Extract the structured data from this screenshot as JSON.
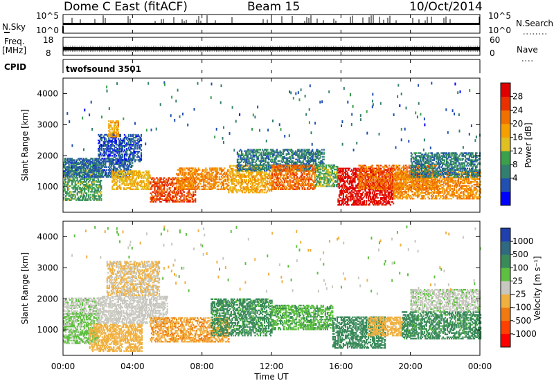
{
  "header": {
    "station": "Dome C East (fitACF)",
    "beam": "Beam 15",
    "date": "10/Oct/2014"
  },
  "top_panels": {
    "nsky": {
      "label": "N.Sky",
      "ticks": [
        "10^5",
        "10^0"
      ]
    },
    "nsearch": {
      "label": "N.Search",
      "ticks": [
        "10^5",
        "10^0"
      ]
    },
    "freq": {
      "label_line1": "Freq.",
      "label_line2": "[MHz]",
      "ticks": [
        "18",
        "8"
      ]
    },
    "nave": {
      "label": "Nave",
      "ticks": [
        "60",
        "0"
      ]
    },
    "cpid": {
      "label": "CPID",
      "program": "twofsound 3501"
    }
  },
  "power_bar": {
    "title": "Power [dB]",
    "ticks": [
      "28",
      "24",
      "20",
      "16",
      "12",
      "8",
      "4"
    ],
    "colors": [
      "#0000ff",
      "#2050b0",
      "#337f6f",
      "#3aa04a",
      "#e0c020",
      "#f5a000",
      "#f07000",
      "#e83000",
      "#e00000"
    ]
  },
  "velocity_bar": {
    "title": "Velocity [m s⁻¹]",
    "ticks": [
      "1000",
      "500",
      "100",
      "25",
      "-25",
      "-100",
      "-500",
      "-1000"
    ],
    "colors": [
      "#2040b0",
      "#2f6a80",
      "#3a8a5a",
      "#5ec040",
      "#c8c8c0",
      "#f0b040",
      "#f07a10",
      "#ff4000",
      "#ff0000"
    ]
  },
  "time_axis": {
    "label": "Time UT",
    "ticks": [
      "00:00",
      "04:00",
      "08:00",
      "12:00",
      "16:00",
      "20:00",
      "00:00"
    ]
  },
  "chart_data": [
    {
      "type": "heatmap",
      "title": "",
      "quantity": "Power [dB]",
      "xlabel": "",
      "ylabel": "Slant Range [km]",
      "xlim": [
        "00:00",
        "24:00"
      ],
      "ylim": [
        180,
        4500
      ],
      "yticks": [
        1000,
        2000,
        3000,
        4000
      ],
      "clim": [
        0,
        30
      ],
      "grid": false,
      "regions": [
        {
          "t0": 0.0,
          "t1": 2.2,
          "r0": 550,
          "r1": 1800,
          "value": 11
        },
        {
          "t0": 0.0,
          "t1": 4.0,
          "r0": 1300,
          "r1": 1900,
          "value": 6
        },
        {
          "t0": 2.0,
          "t1": 4.5,
          "r0": 1800,
          "r1": 2700,
          "value": 5
        },
        {
          "t0": 2.6,
          "t1": 3.2,
          "r0": 2600,
          "r1": 3100,
          "value": 18
        },
        {
          "t0": 2.8,
          "t1": 5.0,
          "r0": 900,
          "r1": 1500,
          "value": 17
        },
        {
          "t0": 5.0,
          "t1": 7.6,
          "r0": 500,
          "r1": 1300,
          "value": 24
        },
        {
          "t0": 6.5,
          "t1": 9.5,
          "r0": 900,
          "r1": 1600,
          "value": 20
        },
        {
          "t0": 9.5,
          "t1": 12.0,
          "r0": 800,
          "r1": 1700,
          "value": 18
        },
        {
          "t0": 10.0,
          "t1": 15.0,
          "r0": 1500,
          "r1": 2200,
          "value": 8
        },
        {
          "t0": 12.0,
          "t1": 14.5,
          "r0": 900,
          "r1": 1700,
          "value": 22
        },
        {
          "t0": 14.5,
          "t1": 15.8,
          "r0": 1000,
          "r1": 1700,
          "value": 12
        },
        {
          "t0": 15.8,
          "t1": 19.0,
          "r0": 400,
          "r1": 1600,
          "value": 28
        },
        {
          "t0": 17.0,
          "t1": 21.5,
          "r0": 900,
          "r1": 1700,
          "value": 22
        },
        {
          "t0": 19.0,
          "t1": 24.0,
          "r0": 600,
          "r1": 1500,
          "value": 20
        },
        {
          "t0": 20.0,
          "t1": 24.0,
          "r0": 1300,
          "r1": 2100,
          "value": 8
        }
      ]
    },
    {
      "type": "heatmap",
      "title": "",
      "quantity": "Velocity [m s^-1]",
      "xlabel": "Time UT",
      "ylabel": "Slant Range [km]",
      "xlim": [
        "00:00",
        "24:00"
      ],
      "ylim": [
        180,
        4500
      ],
      "yticks": [
        1000,
        2000,
        3000,
        4000
      ],
      "clim": [
        -1000,
        1000
      ],
      "grid": false,
      "regions": [
        {
          "t0": 0.0,
          "t1": 2.0,
          "r0": 550,
          "r1": 1500,
          "value": 150
        },
        {
          "t0": 0.0,
          "t1": 2.0,
          "r0": 1500,
          "r1": 2000,
          "value": 60
        },
        {
          "t0": 1.5,
          "t1": 4.5,
          "r0": 300,
          "r1": 1200,
          "value": -200
        },
        {
          "t0": 2.0,
          "t1": 6.0,
          "r0": 1200,
          "r1": 2100,
          "value": 0
        },
        {
          "t0": 2.5,
          "t1": 5.5,
          "r0": 2100,
          "r1": 3200,
          "value": -120
        },
        {
          "t0": 5.0,
          "t1": 9.5,
          "r0": 600,
          "r1": 1400,
          "value": -300
        },
        {
          "t0": 8.5,
          "t1": 12.0,
          "r0": 800,
          "r1": 2000,
          "value": 400
        },
        {
          "t0": 12.0,
          "t1": 15.5,
          "r0": 1000,
          "r1": 1800,
          "value": 300
        },
        {
          "t0": 15.5,
          "t1": 18.5,
          "r0": 400,
          "r1": 1400,
          "value": 450
        },
        {
          "t0": 17.5,
          "t1": 19.5,
          "r0": 800,
          "r1": 1400,
          "value": -200
        },
        {
          "t0": 19.5,
          "t1": 24.0,
          "r0": 700,
          "r1": 1600,
          "value": 400
        },
        {
          "t0": 20.0,
          "t1": 24.0,
          "r0": 1600,
          "r1": 2300,
          "value": 60
        }
      ]
    }
  ]
}
